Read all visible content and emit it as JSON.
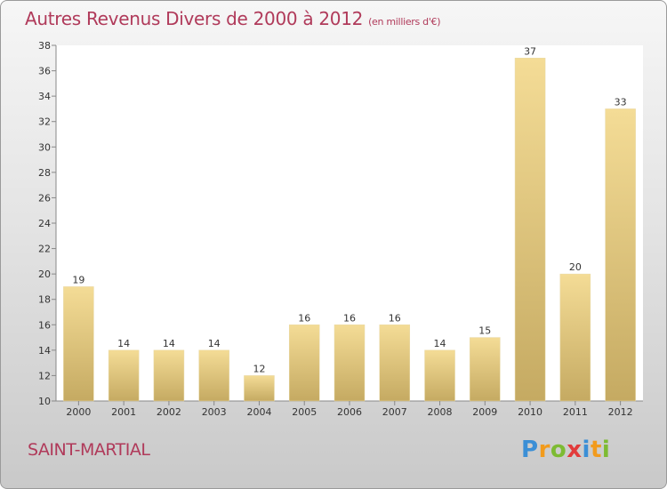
{
  "header": {
    "title": "Autres Revenus Divers de 2000 à 2012",
    "unit": "(en milliers d'€)"
  },
  "footer": {
    "commune": "SAINT-MARTIAL",
    "logo": [
      "P",
      "r",
      "o",
      "x",
      "i",
      "t",
      "i"
    ],
    "logo_colors": [
      "#3b8fd6",
      "#f29b1c",
      "#7dbb33",
      "#e23b3b",
      "#3b8fd6",
      "#f29b1c",
      "#7dbb33"
    ]
  },
  "colors": {
    "title": "#b03a5a",
    "bar_light": "#f4dc96",
    "bar_dark": "#c5aa62"
  },
  "chart_data": {
    "type": "bar",
    "title": "Autres Revenus Divers de 2000 à 2012",
    "subtitle": "(en milliers d'€)",
    "categories": [
      "2000",
      "2001",
      "2002",
      "2003",
      "2004",
      "2005",
      "2006",
      "2007",
      "2008",
      "2009",
      "2010",
      "2011",
      "2012"
    ],
    "values": [
      19,
      14,
      14,
      14,
      12,
      16,
      16,
      16,
      14,
      15,
      37,
      20,
      33
    ],
    "ylim": [
      10,
      38
    ],
    "yticks": [
      10,
      12,
      14,
      16,
      18,
      20,
      22,
      24,
      26,
      28,
      30,
      32,
      34,
      36,
      38
    ],
    "grid": false,
    "legend": "none"
  }
}
